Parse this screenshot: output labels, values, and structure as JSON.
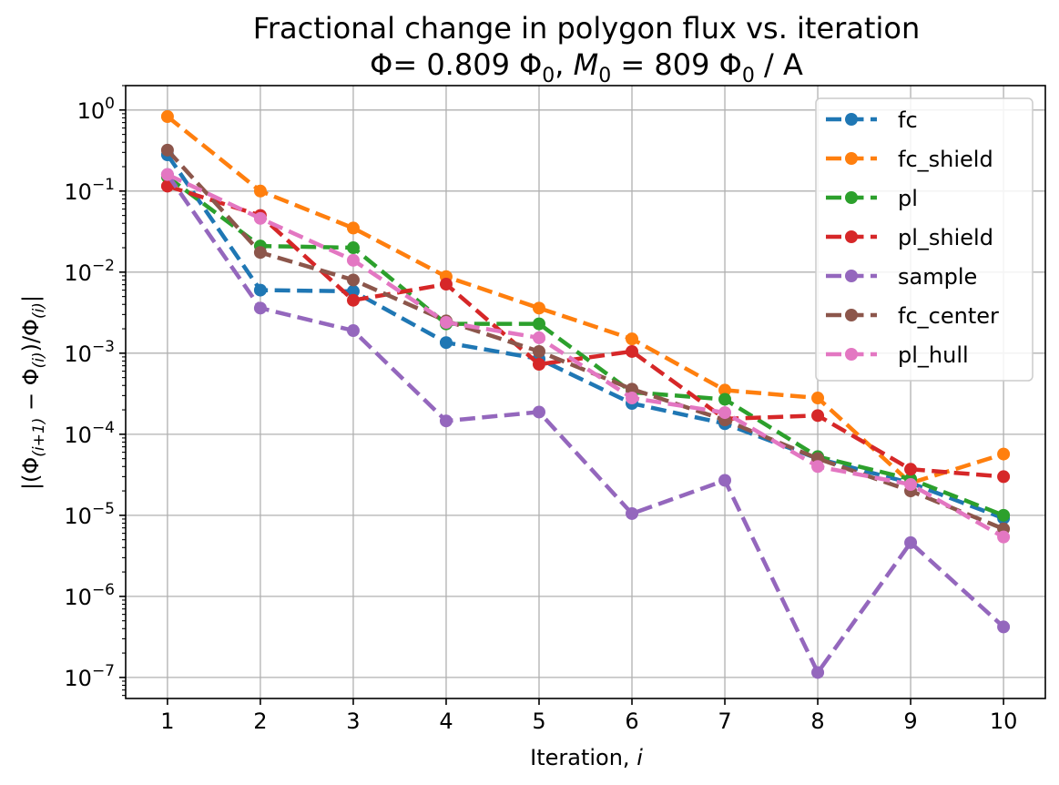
{
  "chart_data": {
    "type": "line",
    "title": "Fractional change in polygon flux vs. iteration",
    "subtitle_parts": {
      "phi_symbol": "Φ",
      "phi_eq": "= 0.809 Φ",
      "phi_sub": "0",
      "m_symbol": "M",
      "m_sub": "0",
      "m_eq": " = 809 Φ",
      "m_phi_sub": "0",
      "m_units": " / A"
    },
    "xlabel": "Iteration,",
    "xlabel_var": "i",
    "ylabel": "|(Φ(i+1) − Φ(i))/Φ(i)|",
    "ylabel_parts": {
      "open": "|(Φ",
      "sub1": "(i+1)",
      "mid": " − Φ",
      "sub2": "(i)",
      "div": ")/Φ",
      "sub3": "(i)",
      "close": "|"
    },
    "y_scale": "log",
    "x": [
      1,
      2,
      3,
      4,
      5,
      6,
      7,
      8,
      9,
      10
    ],
    "xlim": [
      0.55,
      10.45
    ],
    "ylim": [
      5.5e-08,
      2.0
    ],
    "y_tick_exponents": [
      "0",
      "−1",
      "−2",
      "−3",
      "−4",
      "−5",
      "−6",
      "−7"
    ],
    "y_tick_base": "10",
    "grid": true,
    "legend_position": "top-right",
    "series": [
      {
        "name": "fc",
        "color": "#1f77b4",
        "values": [
          0.28,
          0.006,
          0.0058,
          0.00135,
          0.00085,
          0.00024,
          0.000135,
          5e-05,
          2.5e-05,
          9.2e-06
        ]
      },
      {
        "name": "fc_shield",
        "color": "#ff7f0e",
        "values": [
          0.83,
          0.1,
          0.035,
          0.0088,
          0.0036,
          0.0015,
          0.00035,
          0.00028,
          2.5e-05,
          5.7e-05
        ]
      },
      {
        "name": "pl",
        "color": "#2ca02c",
        "values": [
          0.15,
          0.021,
          0.02,
          0.0023,
          0.0023,
          0.00033,
          0.00027,
          5.3e-05,
          2.8e-05,
          1e-05
        ]
      },
      {
        "name": "pl_shield",
        "color": "#d62728",
        "values": [
          0.115,
          0.05,
          0.0045,
          0.0071,
          0.00073,
          0.00105,
          0.000155,
          0.00017,
          3.7e-05,
          3e-05
        ]
      },
      {
        "name": "sample",
        "color": "#9467bd",
        "values": [
          0.16,
          0.0036,
          0.0019,
          0.000146,
          0.000188,
          1.05e-05,
          2.7e-05,
          1.15e-07,
          4.6e-06,
          4.2e-07
        ]
      },
      {
        "name": "fc_center",
        "color": "#8c564b",
        "values": [
          0.32,
          0.0175,
          0.008,
          0.0025,
          0.00105,
          0.00036,
          0.00015,
          5e-05,
          2e-05,
          6.8e-06
        ]
      },
      {
        "name": "pl_hull",
        "color": "#e377c2",
        "values": [
          0.16,
          0.046,
          0.014,
          0.0024,
          0.00155,
          0.00028,
          0.000185,
          4e-05,
          2.4e-05,
          5.4e-06
        ]
      }
    ]
  }
}
